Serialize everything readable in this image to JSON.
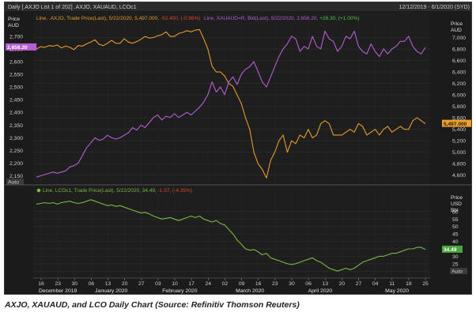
{
  "header": {
    "left": "Daily [.AXJO List 1 of 202] .AXJO, XAUAUD, LCOc1",
    "right": "12/12/2019 - 6/1/2020 (SYD)"
  },
  "chart_data": [
    {
      "type": "line",
      "panel": "top",
      "legend": [
        {
          "text": "Line, .AXJO, Trade Price(Last), 5/22/2020, 5,497.000, ",
          "change": "-53.400, (-0.96%)",
          "color": "#e69b2b",
          "change_color": "#e0452b"
        },
        {
          "text": "Line, XAUAUD=R, Bid(Last), 5/22/2020, 2,656.20, ",
          "change": "+26.30, (+1.00%)",
          "color": "#b65dd6",
          "change_color": "#54c24a"
        }
      ],
      "left_axis": {
        "label": [
          "Price",
          "AUD"
        ],
        "ticks": [
          "2,700",
          "2,650",
          "2,600",
          "2,550",
          "2,500",
          "2,450",
          "2,400",
          "2,350",
          "2,300",
          "2,250",
          "2,200",
          "2,150"
        ],
        "ylim": [
          2130,
          2740
        ]
      },
      "right_axis": {
        "label": [
          "Price",
          "AUD"
        ],
        "ticks": [
          "7,000",
          "6,800",
          "6,600",
          "6,400",
          "6,200",
          "6,000",
          "5,800",
          "5,600",
          "5,400",
          "5,200",
          "5,000",
          "4,800",
          "4,600"
        ],
        "ylim": [
          4500,
          7200
        ]
      },
      "flags": [
        {
          "text": "2,656.20",
          "side": "left",
          "value": 2656.2,
          "bg": "#b65dd6",
          "fg": "#ffffff"
        },
        {
          "text": "5,497.000",
          "side": "right",
          "value": 5497,
          "bg": "#f0a02a",
          "fg": "#1b1b1b"
        }
      ],
      "auto_label": "Auto",
      "series": [
        {
          "name": ".AXJO",
          "axis": "right",
          "color": "#e69b2b",
          "x": [
            0,
            2,
            4,
            6,
            8,
            10,
            12,
            14,
            16,
            18,
            20,
            22,
            24,
            26,
            28,
            30,
            32,
            34,
            36,
            38,
            40,
            42,
            44,
            46,
            48,
            50,
            52,
            54,
            56,
            58,
            60,
            62,
            64,
            66,
            68,
            70,
            72,
            74,
            76,
            78,
            80,
            82,
            84,
            86,
            88,
            90,
            92,
            94,
            96,
            98,
            100,
            102,
            104,
            106,
            108,
            110,
            112,
            114,
            116,
            118,
            120,
            122,
            124,
            126,
            128,
            130,
            132,
            134,
            136,
            138,
            140,
            142,
            144,
            146,
            148,
            150,
            152,
            154,
            156,
            158,
            160,
            162,
            164,
            166,
            168,
            170,
            172,
            174,
            176,
            178,
            180,
            182,
            184,
            186
          ],
          "values": [
            6800,
            6840,
            6830,
            6860,
            6850,
            6870,
            6820,
            6850,
            6830,
            6790,
            6860,
            6850,
            6890,
            6920,
            6960,
            6880,
            6860,
            6900,
            6950,
            6900,
            6900,
            6980,
            6920,
            6900,
            6930,
            6970,
            7020,
            6990,
            7000,
            7030,
            7050,
            7100,
            7020,
            7020,
            7070,
            7090,
            7120,
            7100,
            7130,
            7140,
            6980,
            6800,
            6500,
            6400,
            6400,
            6330,
            6200,
            6150,
            6000,
            5850,
            5600,
            5400,
            5000,
            4800,
            4700,
            4550,
            4860,
            5000,
            5200,
            5300,
            5000,
            5200,
            5150,
            5300,
            5250,
            5400,
            5250,
            5300,
            5500,
            5550,
            5500,
            5300,
            5300,
            5300,
            5350,
            5400,
            5350,
            5500,
            5450,
            5300,
            5350,
            5400,
            5300,
            5400,
            5450,
            5350,
            5400,
            5450,
            5400,
            5400,
            5550,
            5600,
            5550,
            5497
          ]
        },
        {
          "name": "XAUAUD",
          "axis": "left",
          "color": "#b65dd6",
          "x": [
            0,
            2,
            4,
            6,
            8,
            10,
            12,
            14,
            16,
            18,
            20,
            22,
            24,
            26,
            28,
            30,
            32,
            34,
            36,
            38,
            40,
            42,
            44,
            46,
            48,
            50,
            52,
            54,
            56,
            58,
            60,
            62,
            64,
            66,
            68,
            70,
            72,
            74,
            76,
            78,
            80,
            82,
            84,
            86,
            88,
            90,
            92,
            94,
            96,
            98,
            100,
            102,
            104,
            106,
            108,
            110,
            112,
            114,
            116,
            118,
            120,
            122,
            124,
            126,
            128,
            130,
            132,
            134,
            136,
            138,
            140,
            142,
            144,
            146,
            148,
            150,
            152,
            154,
            156,
            158,
            160,
            162,
            164,
            166,
            168,
            170,
            172,
            174,
            176,
            178,
            180,
            182,
            184,
            186
          ],
          "values": [
            2145,
            2150,
            2155,
            2160,
            2165,
            2160,
            2165,
            2170,
            2185,
            2190,
            2200,
            2230,
            2260,
            2280,
            2300,
            2290,
            2295,
            2310,
            2300,
            2295,
            2300,
            2310,
            2320,
            2340,
            2330,
            2350,
            2340,
            2360,
            2380,
            2390,
            2370,
            2385,
            2380,
            2395,
            2380,
            2390,
            2400,
            2390,
            2405,
            2420,
            2440,
            2470,
            2520,
            2480,
            2500,
            2470,
            2520,
            2540,
            2510,
            2550,
            2570,
            2580,
            2600,
            2560,
            2520,
            2500,
            2540,
            2580,
            2620,
            2650,
            2670,
            2700,
            2690,
            2640,
            2660,
            2650,
            2700,
            2660,
            2650,
            2720,
            2690,
            2680,
            2640,
            2660,
            2700,
            2690,
            2720,
            2660,
            2640,
            2630,
            2670,
            2640,
            2620,
            2650,
            2630,
            2650,
            2660,
            2680,
            2680,
            2700,
            2660,
            2640,
            2630,
            2656
          ]
        }
      ]
    },
    {
      "type": "line",
      "panel": "bottom",
      "legend": [
        {
          "text": "Line, LCOc1, Trade Price(Last), 5/22/2020, 34.49, ",
          "change": "-1.57, (-4.35%)",
          "color": "#78b843",
          "change_color": "#e0452b"
        }
      ],
      "right_axis": {
        "label": [
          "Price",
          "USD",
          "Bbl"
        ],
        "ticks": [
          "60",
          "55",
          "50",
          "45",
          "40",
          "35",
          "30",
          "25",
          "20"
        ],
        "ylim": [
          18,
          70
        ]
      },
      "flags": [
        {
          "text": "34.49",
          "side": "right",
          "value": 34.49,
          "bg": "#4aa83a",
          "fg": "#ffffff"
        }
      ],
      "auto_label": "Auto",
      "series": [
        {
          "name": "LCOc1",
          "axis": "right",
          "color": "#78b843",
          "x": [
            0,
            2,
            4,
            6,
            8,
            10,
            12,
            14,
            16,
            18,
            20,
            22,
            24,
            26,
            28,
            30,
            32,
            34,
            36,
            38,
            40,
            42,
            44,
            46,
            48,
            50,
            52,
            54,
            56,
            58,
            60,
            62,
            64,
            66,
            68,
            70,
            72,
            74,
            76,
            78,
            80,
            82,
            84,
            86,
            88,
            90,
            92,
            94,
            96,
            98,
            100,
            102,
            104,
            106,
            108,
            110,
            112,
            114,
            116,
            118,
            120,
            122,
            124,
            126,
            128,
            130,
            132,
            134,
            136,
            138,
            140,
            142,
            144,
            146,
            148,
            150,
            152,
            154,
            156,
            158,
            160,
            162,
            164,
            166,
            168,
            170,
            172,
            174,
            176,
            178,
            180,
            182,
            184,
            186
          ],
          "values": [
            65,
            65.5,
            66,
            65.5,
            66,
            65,
            66,
            66.5,
            67,
            66,
            65.5,
            66,
            67,
            68,
            67,
            66,
            65,
            64,
            64.5,
            63.5,
            64,
            63,
            62,
            61,
            60,
            59,
            59.5,
            58.5,
            57,
            56,
            55,
            55.5,
            56,
            55,
            54,
            55,
            56,
            57,
            56,
            57,
            55,
            54,
            53,
            54,
            52,
            51,
            48,
            45,
            41,
            38,
            35,
            34,
            34.5,
            33,
            31,
            32,
            29,
            28,
            27,
            26,
            25,
            24.5,
            25,
            26,
            27,
            28,
            29,
            27,
            26,
            24,
            22,
            21,
            20,
            21,
            22,
            21,
            22,
            24,
            26,
            27,
            28,
            29,
            30,
            30,
            31,
            32,
            32,
            33,
            34,
            35,
            35,
            36,
            36,
            34.5
          ]
        }
      ]
    }
  ],
  "x_axis": {
    "day_ticks": [
      "16",
      "23",
      "30",
      "06",
      "13",
      "20",
      "27",
      "03",
      "10",
      "17",
      "24",
      "02",
      "09",
      "16",
      "23",
      "30",
      "06",
      "13",
      "20",
      "27",
      "04",
      "11",
      "18",
      "25"
    ],
    "months": [
      {
        "text": "December 2019",
        "at": 1
      },
      {
        "text": "January 2020",
        "at": 4.2
      },
      {
        "text": "February 2020",
        "at": 8.3
      },
      {
        "text": "March 2020",
        "at": 12.5
      },
      {
        "text": "April 2020",
        "at": 16.7
      },
      {
        "text": "May 2020",
        "at": 21.3
      }
    ]
  },
  "caption": "AXJO, XAUAUD, and LCO Daily Chart (Source: Refinitiv Thomson Reuters)"
}
